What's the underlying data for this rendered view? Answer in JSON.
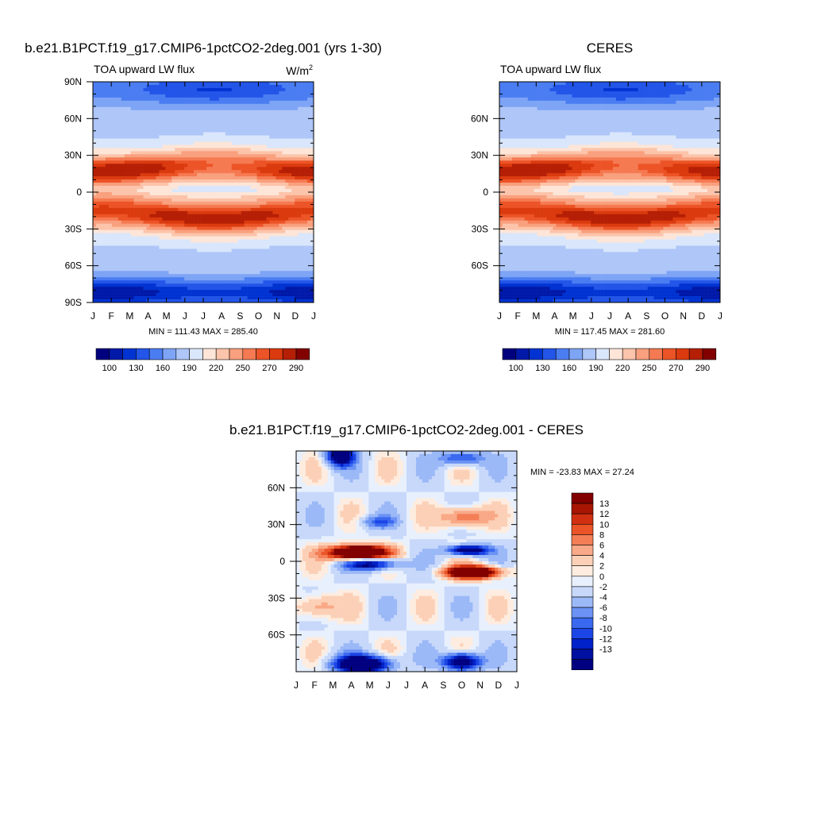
{
  "chart_data": [
    {
      "type": "heatmap",
      "title": "b.e21.B1PCT.f19_g17.CMIP6-1pctCO2-2deg.001 (yrs 1-30)",
      "subtitle": "TOA upward LW flux",
      "units_base": "W/m",
      "units_exp": "2",
      "x_tick_labels": [
        "J",
        "F",
        "M",
        "A",
        "M",
        "J",
        "J",
        "A",
        "S",
        "O",
        "N",
        "D",
        "J"
      ],
      "y_tick_labels": [
        "90N",
        "60N",
        "30N",
        "0",
        "30S",
        "60S",
        "90S"
      ],
      "stats": "MIN = 111.43 MAX = 285.40",
      "colorbar_labels": [
        "100",
        "130",
        "160",
        "190",
        "220",
        "250",
        "270",
        "290"
      ],
      "min": 111.43,
      "max": 285.4
    },
    {
      "type": "heatmap",
      "title": "CERES",
      "subtitle": "TOA upward LW flux",
      "x_tick_labels": [
        "J",
        "F",
        "M",
        "A",
        "M",
        "J",
        "J",
        "A",
        "S",
        "O",
        "N",
        "D",
        "J"
      ],
      "y_tick_labels": [
        "60N",
        "30N",
        "0",
        "30S",
        "60S"
      ],
      "stats": "MIN = 117.45 MAX = 281.60",
      "colorbar_labels": [
        "100",
        "130",
        "160",
        "190",
        "220",
        "250",
        "270",
        "290"
      ],
      "min": 117.45,
      "max": 281.6
    },
    {
      "type": "heatmap",
      "title": "b.e21.B1PCT.f19_g17.CMIP6-1pctCO2-2deg.001 - CERES",
      "x_tick_labels": [
        "J",
        "F",
        "M",
        "A",
        "M",
        "J",
        "J",
        "A",
        "S",
        "O",
        "N",
        "D",
        "J"
      ],
      "y_tick_labels": [
        "60N",
        "30N",
        "0",
        "30S",
        "60S"
      ],
      "stats": "MIN = -23.83 MAX =  27.24",
      "colorbar_labels": [
        "13",
        "12",
        "10",
        "8",
        "6",
        "4",
        "2",
        "0",
        "-2",
        "-4",
        "-6",
        "-8",
        "-10",
        "-12",
        "-13"
      ],
      "min": -23.83,
      "max": 27.24
    }
  ]
}
